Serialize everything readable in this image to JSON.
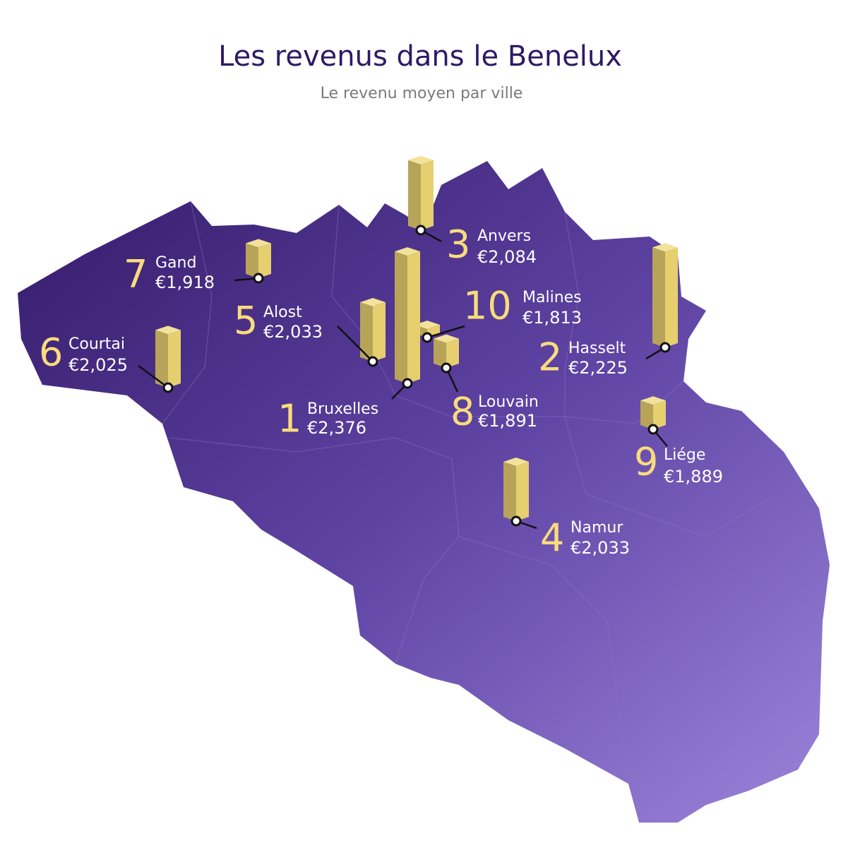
{
  "header": {
    "title": "Les revenus dans le Benelux",
    "subtitle": "Le revenu moyen par ville"
  },
  "cities": [
    {
      "rank": 1,
      "name": "Bruxelles",
      "value": 2376,
      "value_label": "€2,376"
    },
    {
      "rank": 2,
      "name": "Hasselt",
      "value": 2225,
      "value_label": "€2,225"
    },
    {
      "rank": 3,
      "name": "Anvers",
      "value": 2084,
      "value_label": "€2,084"
    },
    {
      "rank": 4,
      "name": "Namur",
      "value": 2033,
      "value_label": "€2,033"
    },
    {
      "rank": 5,
      "name": "Alost",
      "value": 2033,
      "value_label": "€2,033"
    },
    {
      "rank": 6,
      "name": "Courtai",
      "value": 2025,
      "value_label": "€2,025"
    },
    {
      "rank": 7,
      "name": "Gand",
      "value": 1918,
      "value_label": "€1,918"
    },
    {
      "rank": 8,
      "name": "Louvain",
      "value": 1891,
      "value_label": "€1,891"
    },
    {
      "rank": 9,
      "name": "Liége",
      "value": 1889,
      "value_label": "€1,889"
    },
    {
      "rank": 10,
      "name": "Malines",
      "value": 1813,
      "value_label": "€1,813"
    }
  ]
}
